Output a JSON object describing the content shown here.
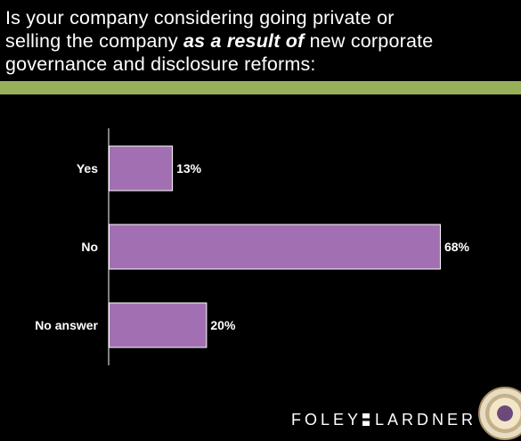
{
  "title": {
    "line1": "Is your company considering going private or",
    "line2_before": "selling the company ",
    "line2_emph": "as a result of",
    "line2_after": " new corporate",
    "line3": "governance and disclosure reforms:"
  },
  "colors": {
    "background": "#000000",
    "accent_rule": "#99b05a",
    "bar_fill": "#a270b2",
    "bar_stroke": "#ffffff",
    "text": "#ffffff"
  },
  "chart_data": {
    "type": "bar",
    "orientation": "horizontal",
    "categories": [
      "Yes",
      "No",
      "No answer"
    ],
    "values": [
      13,
      68,
      20
    ],
    "value_labels": [
      "13%",
      "68%",
      "20%"
    ],
    "xlim": [
      0,
      100
    ],
    "grid": false,
    "legend": "none"
  },
  "branding": {
    "logo_left": "FOLEY",
    "logo_right": "LARDNER"
  }
}
